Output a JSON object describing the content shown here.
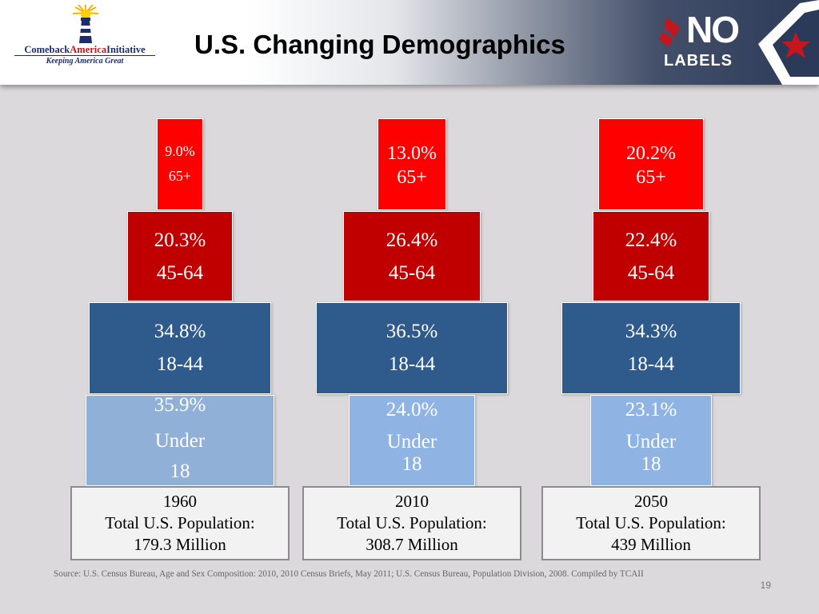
{
  "header": {
    "title": "U.S. Changing Demographics",
    "left_logo": {
      "name_part1": "Comeback",
      "name_part2": "America",
      "name_part3": "Initiative",
      "tagline": "Keeping America Great"
    },
    "right_logo": {
      "line1": "NO",
      "line2": "LABELS"
    }
  },
  "colors": {
    "age_65_plus": "#ff0000",
    "age_45_64": "#c00000",
    "age_18_44": "#2e5a8c",
    "age_under_18_1960": "#90b0d8",
    "age_under_18": "#8fb4e3",
    "header_navy": "#2b3a58"
  },
  "chart_data": {
    "type": "population_pyramid",
    "categories": [
      "65+",
      "45-64",
      "18-44",
      "Under 18"
    ],
    "years": [
      {
        "year": "1960",
        "total_label": "Total U.S. Population:",
        "total_value": "179.3 Million",
        "segments": [
          {
            "pct_label": "9.0%",
            "value": 9.0,
            "age_label": "65+"
          },
          {
            "pct_label": "20.3%",
            "value": 20.3,
            "age_label": "45-64"
          },
          {
            "pct_label": "34.8%",
            "value": 34.8,
            "age_label": "18-44"
          },
          {
            "pct_label": "35.9%",
            "value": 35.9,
            "age_label": "Under\n18"
          }
        ]
      },
      {
        "year": "2010",
        "total_label": "Total U.S. Population:",
        "total_value": "308.7 Million",
        "segments": [
          {
            "pct_label": "13.0%",
            "value": 13.0,
            "age_label": "65+"
          },
          {
            "pct_label": "26.4%",
            "value": 26.4,
            "age_label": "45-64"
          },
          {
            "pct_label": "36.5%",
            "value": 36.5,
            "age_label": "18-44"
          },
          {
            "pct_label": "24.0%",
            "value": 24.0,
            "age_label": "Under\n18"
          }
        ]
      },
      {
        "year": "2050",
        "total_label": "Total U.S. Population:",
        "total_value": "439 Million",
        "segments": [
          {
            "pct_label": "20.2%",
            "value": 20.2,
            "age_label": "65+"
          },
          {
            "pct_label": "22.4%",
            "value": 22.4,
            "age_label": "45-64"
          },
          {
            "pct_label": "34.3%",
            "value": 34.3,
            "age_label": "18-44"
          },
          {
            "pct_label": "23.1%",
            "value": 23.1,
            "age_label": "Under\n18"
          }
        ]
      }
    ]
  },
  "footer": {
    "source": "Source: U.S. Census Bureau, Age and Sex Composition: 2010, 2010 Census Briefs, May 2011; U.S. Census Bureau, Population Division, 2008. Compiled by TCAII",
    "page_number": "19"
  }
}
